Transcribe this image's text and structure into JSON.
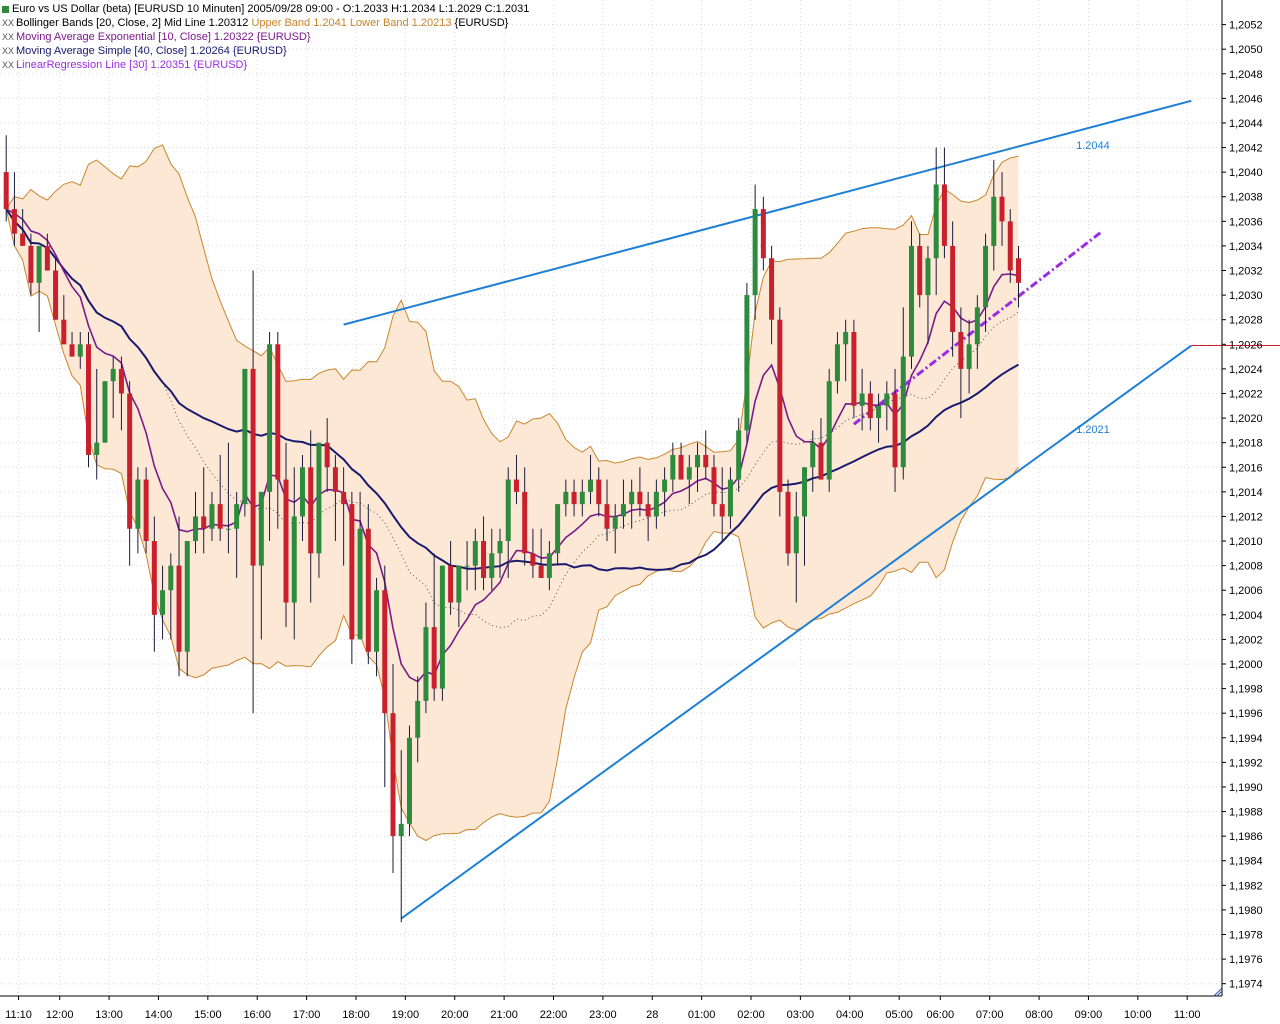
{
  "legend": {
    "instrument": "Euro vs US Dollar (beta) [EURUSD  10 Minuten] 2005/09/28 09:00 - O:1.2033 H:1.2034 L:1.2029 C:1.2031",
    "bollinger_prefix": "Bollinger Bands [20, Close, 2] Mid Line 1.20312 ",
    "bollinger_upper": "Upper Band 1.2041 ",
    "bollinger_lower": "Lower Band 1.20213 ",
    "bollinger_suffix": "{EURUSD}",
    "ema": "Moving Average Exponential [10, Close] 1.20322 {EURUSD}",
    "sma": "Moving Average Simple [40, Close] 1.20264 {EURUSD}",
    "linreg": "LinearRegression Line [30] 1.20351 {EURUSD}",
    "marker": "XX"
  },
  "colors": {
    "bull": "#2e8b3e",
    "bear": "#c8202c",
    "wick": "#1a1a3c",
    "band_fill": "#fde8d6",
    "band_line": "#c9862c",
    "ema": "#7a1a8a",
    "sma": "#1a1a6e",
    "mid": "#555555",
    "trend": "#1e7fd6",
    "linreg": "#9a2be2",
    "marker_line": "#c8202c",
    "grid": "#d8d8d8"
  },
  "chart_data": {
    "type": "candlestick",
    "timeframe": "10 Minuten",
    "ylim": [
      1.1973,
      1.2054
    ],
    "y_ticks": [
      "1,2052",
      "1,2050",
      "1,2048",
      "1,2046",
      "1,2044",
      "1,2042",
      "1,2040",
      "1,2038",
      "1,2036",
      "1,2034",
      "1,2032",
      "1,2030",
      "1,2028",
      "1,2026",
      "1,2024",
      "1,2022",
      "1,2020",
      "1,2018",
      "1,2016",
      "1,2014",
      "1,2012",
      "1,2010",
      "1,2008",
      "1,2006",
      "1,2004",
      "1,2002",
      "1,2000",
      "1,1998",
      "1,1996",
      "1,1994",
      "1,1992",
      "1,1990",
      "1,1988",
      "1,1986",
      "1,1984",
      "1,1982",
      "1,1980",
      "1,1978",
      "1,1976",
      "1,1974"
    ],
    "x_ticks": [
      {
        "i": 1.5,
        "label": "11:10"
      },
      {
        "i": 6.5,
        "label": "12:00"
      },
      {
        "i": 12.5,
        "label": "13:00"
      },
      {
        "i": 18.5,
        "label": "14:00"
      },
      {
        "i": 24.5,
        "label": "15:00"
      },
      {
        "i": 30.5,
        "label": "16:00"
      },
      {
        "i": 36.5,
        "label": "17:00"
      },
      {
        "i": 42.5,
        "label": "18:00"
      },
      {
        "i": 48.5,
        "label": "19:00"
      },
      {
        "i": 54.5,
        "label": "20:00"
      },
      {
        "i": 60.5,
        "label": "21:00"
      },
      {
        "i": 66.5,
        "label": "22:00"
      },
      {
        "i": 72.5,
        "label": "23:00"
      },
      {
        "i": 78.5,
        "label": "28"
      },
      {
        "i": 84.5,
        "label": "01:00"
      },
      {
        "i": 90.5,
        "label": "02:00"
      },
      {
        "i": 96.5,
        "label": "03:00"
      },
      {
        "i": 102.5,
        "label": "04:00"
      },
      {
        "i": 108.5,
        "label": "05:00"
      },
      {
        "i": 113.5,
        "label": "06:00"
      },
      {
        "i": 119.5,
        "label": "07:00"
      },
      {
        "i": 125.5,
        "label": "08:00"
      },
      {
        "i": 131.5,
        "label": "09:00"
      },
      {
        "i": 137.5,
        "label": "10:00"
      },
      {
        "i": 143.5,
        "label": "11:00"
      }
    ],
    "ohlc": [
      [
        1.204,
        1.2043,
        1.2036,
        1.2037
      ],
      [
        1.2037,
        1.204,
        1.2034,
        1.2035
      ],
      [
        1.2035,
        1.2037,
        1.2034,
        1.2034
      ],
      [
        1.2034,
        1.2035,
        1.203,
        1.2031
      ],
      [
        1.2031,
        1.2034,
        1.2027,
        1.2034
      ],
      [
        1.2034,
        1.2035,
        1.2032,
        1.2032
      ],
      [
        1.2032,
        1.2033,
        1.2028,
        1.2028
      ],
      [
        1.2028,
        1.203,
        1.2026,
        1.2026
      ],
      [
        1.2026,
        1.2027,
        1.2025,
        1.2025
      ],
      [
        1.2025,
        1.2027,
        1.2024,
        1.2026
      ],
      [
        1.2026,
        1.2027,
        1.2016,
        1.2017
      ],
      [
        1.2017,
        1.2024,
        1.2015,
        1.2018
      ],
      [
        1.2018,
        1.2023,
        1.2018,
        1.2023
      ],
      [
        1.2023,
        1.2025,
        1.202,
        1.2024
      ],
      [
        1.2024,
        1.2025,
        1.2019,
        1.2022
      ],
      [
        1.2022,
        1.2023,
        1.2008,
        1.2011
      ],
      [
        1.2011,
        1.2016,
        1.2009,
        1.2015
      ],
      [
        1.2015,
        1.2016,
        1.2009,
        1.201
      ],
      [
        1.201,
        1.2012,
        1.2001,
        1.2004
      ],
      [
        1.2004,
        1.2008,
        1.2002,
        1.2006
      ],
      [
        1.2006,
        1.2009,
        1.2002,
        1.2008
      ],
      [
        1.2008,
        1.2012,
        1.1999,
        1.2001
      ],
      [
        1.2001,
        1.201,
        1.1999,
        1.201
      ],
      [
        1.201,
        1.2014,
        1.2009,
        1.2012
      ],
      [
        1.2012,
        1.2016,
        1.2009,
        1.2011
      ],
      [
        1.2011,
        1.2014,
        1.201,
        1.2013
      ],
      [
        1.2013,
        1.2017,
        1.201,
        1.2011
      ],
      [
        1.2011,
        1.2018,
        1.2009,
        1.2011
      ],
      [
        1.2011,
        1.2014,
        1.2007,
        1.2013
      ],
      [
        1.2013,
        1.2024,
        1.2012,
        1.2024
      ],
      [
        1.2024,
        1.2032,
        1.1996,
        1.2008
      ],
      [
        1.2008,
        1.2014,
        1.2002,
        1.2014
      ],
      [
        1.2014,
        1.2027,
        1.201,
        1.2026
      ],
      [
        1.2026,
        1.2027,
        1.2011,
        1.2015
      ],
      [
        1.2015,
        1.2018,
        1.2003,
        1.2005
      ],
      [
        1.2005,
        1.2016,
        1.2002,
        1.2012
      ],
      [
        1.2012,
        1.2017,
        1.201,
        1.2016
      ],
      [
        1.2016,
        1.2019,
        1.2005,
        1.2009
      ],
      [
        1.2009,
        1.2018,
        1.2007,
        1.2018
      ],
      [
        1.2018,
        1.202,
        1.2014,
        1.2016
      ],
      [
        1.2016,
        1.2017,
        1.201,
        1.2014
      ],
      [
        1.2014,
        1.2016,
        1.2008,
        1.2013
      ],
      [
        1.2013,
        1.2014,
        1.2,
        1.2002
      ],
      [
        1.2002,
        1.2014,
        1.2002,
        1.2011
      ],
      [
        1.2011,
        1.2013,
        1.2,
        1.2001
      ],
      [
        1.2001,
        1.2007,
        1.1999,
        1.2006
      ],
      [
        1.2006,
        1.2008,
        1.199,
        1.1996
      ],
      [
        1.1996,
        1.2,
        1.1983,
        1.1986
      ],
      [
        1.1986,
        1.1993,
        1.1979,
        1.1987
      ],
      [
        1.1987,
        1.1995,
        1.1986,
        1.1994
      ],
      [
        1.1994,
        1.1999,
        1.1992,
        1.1997
      ],
      [
        1.1997,
        1.2005,
        1.1996,
        1.2003
      ],
      [
        1.2003,
        1.2009,
        1.1997,
        1.1998
      ],
      [
        1.1998,
        1.2008,
        1.1997,
        1.2008
      ],
      [
        1.2008,
        1.201,
        1.2004,
        1.2005
      ],
      [
        1.2005,
        1.2008,
        1.2003,
        1.2008
      ],
      [
        1.2008,
        1.201,
        1.2006,
        1.2008
      ],
      [
        1.2008,
        1.2011,
        1.2006,
        1.201
      ],
      [
        1.201,
        1.2012,
        1.2006,
        1.2007
      ],
      [
        1.2007,
        1.2011,
        1.2006,
        1.2009
      ],
      [
        1.2009,
        1.2011,
        1.2007,
        1.201
      ],
      [
        1.201,
        1.2016,
        1.2007,
        1.2015
      ],
      [
        1.2015,
        1.2017,
        1.2013,
        1.2014
      ],
      [
        1.2014,
        1.2016,
        1.2008,
        1.2009
      ],
      [
        1.2009,
        1.2011,
        1.2007,
        1.2008
      ],
      [
        1.2008,
        1.2011,
        1.2007,
        1.2007
      ],
      [
        1.2007,
        1.201,
        1.2006,
        1.2009
      ],
      [
        1.2009,
        1.2013,
        1.2008,
        1.2013
      ],
      [
        1.2013,
        1.2015,
        1.2012,
        1.2014
      ],
      [
        1.2014,
        1.2015,
        1.2012,
        1.2013
      ],
      [
        1.2013,
        1.2015,
        1.2012,
        1.2014
      ],
      [
        1.2014,
        1.2017,
        1.2013,
        1.2015
      ],
      [
        1.2015,
        1.2016,
        1.2012,
        1.2013
      ],
      [
        1.2013,
        1.2015,
        1.201,
        1.2011
      ],
      [
        1.2011,
        1.2013,
        1.2009,
        1.2012
      ],
      [
        1.2012,
        1.2015,
        1.2011,
        1.2013
      ],
      [
        1.2013,
        1.2015,
        1.2011,
        1.2014
      ],
      [
        1.2014,
        1.2016,
        1.2012,
        1.2013
      ],
      [
        1.2013,
        1.2014,
        1.201,
        1.2012
      ],
      [
        1.2012,
        1.2015,
        1.2011,
        1.2014
      ],
      [
        1.2014,
        1.2016,
        1.2012,
        1.2015
      ],
      [
        1.2015,
        1.2018,
        1.2014,
        1.2017
      ],
      [
        1.2017,
        1.2018,
        1.2015,
        1.2015
      ],
      [
        1.2015,
        1.2017,
        1.2013,
        1.2016
      ],
      [
        1.2016,
        1.2018,
        1.2014,
        1.2017
      ],
      [
        1.2017,
        1.2019,
        1.2015,
        1.2016
      ],
      [
        1.2016,
        1.2017,
        1.2012,
        1.2013
      ],
      [
        1.2013,
        1.2016,
        1.201,
        1.2012
      ],
      [
        1.2012,
        1.2016,
        1.2011,
        1.2015
      ],
      [
        1.2015,
        1.202,
        1.2014,
        1.2019
      ],
      [
        1.2019,
        1.2031,
        1.2018,
        1.203
      ],
      [
        1.203,
        1.2039,
        1.2028,
        1.2037
      ],
      [
        1.2037,
        1.2038,
        1.2032,
        1.2033
      ],
      [
        1.2033,
        1.2034,
        1.2026,
        1.2028
      ],
      [
        1.2028,
        1.2029,
        1.2012,
        1.2014
      ],
      [
        1.2014,
        1.2015,
        1.2008,
        1.2009
      ],
      [
        1.2009,
        1.2014,
        1.2005,
        1.2012
      ],
      [
        1.2012,
        1.2016,
        1.2008,
        1.2016
      ],
      [
        1.2016,
        1.2019,
        1.2014,
        1.2018
      ],
      [
        1.2018,
        1.202,
        1.2015,
        1.2015
      ],
      [
        1.2015,
        1.2024,
        1.2014,
        1.2023
      ],
      [
        1.2023,
        1.2027,
        1.2022,
        1.2026
      ],
      [
        1.2026,
        1.2028,
        1.2023,
        1.2027
      ],
      [
        1.2027,
        1.2028,
        1.202,
        1.2021
      ],
      [
        1.2021,
        1.2024,
        1.2019,
        1.2022
      ],
      [
        1.2022,
        1.2023,
        1.2019,
        1.202
      ],
      [
        1.202,
        1.2022,
        1.2018,
        1.2021
      ],
      [
        1.2021,
        1.2023,
        1.2019,
        1.2022
      ],
      [
        1.2022,
        1.2024,
        1.2014,
        1.2016
      ],
      [
        1.2016,
        1.2029,
        1.2015,
        1.2025
      ],
      [
        1.2025,
        1.2036,
        1.2024,
        1.2034
      ],
      [
        1.2034,
        1.2035,
        1.2029,
        1.203
      ],
      [
        1.203,
        1.2034,
        1.2026,
        1.2033
      ],
      [
        1.2033,
        1.2042,
        1.203,
        1.2039
      ],
      [
        1.2039,
        1.2042,
        1.2033,
        1.2034
      ],
      [
        1.2034,
        1.2036,
        1.2025,
        1.2027
      ],
      [
        1.2027,
        1.2029,
        1.202,
        1.2024
      ],
      [
        1.2024,
        1.2028,
        1.2022,
        1.2026
      ],
      [
        1.2026,
        1.203,
        1.2024,
        1.2029
      ],
      [
        1.2029,
        1.2035,
        1.2027,
        1.2034
      ],
      [
        1.2034,
        1.2041,
        1.2032,
        1.2038
      ],
      [
        1.2038,
        1.204,
        1.2034,
        1.2036
      ],
      [
        1.2036,
        1.2037,
        1.2031,
        1.2032
      ],
      [
        1.2033,
        1.2034,
        1.2029,
        1.2031
      ]
    ],
    "trendlines": [
      {
        "name": "upper",
        "i1": 41,
        "y1": 1.20276,
        "i2": 144,
        "y2": 1.20458,
        "label": "1.2044"
      },
      {
        "name": "lower",
        "i1": 48,
        "y1": 1.19793,
        "i2": 144,
        "y2": 1.20259,
        "label": "1.2021"
      }
    ],
    "hline": {
      "i1": 144,
      "i2": 157,
      "y": 1.20259
    },
    "linreg": {
      "i1": 103,
      "y1": 1.20195,
      "i2": 133,
      "y2": 1.20351
    }
  }
}
